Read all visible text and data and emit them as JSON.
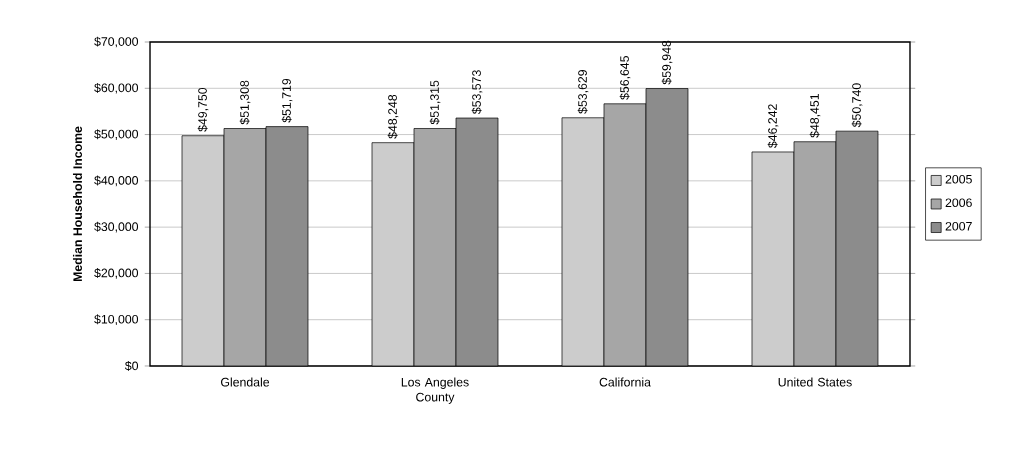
{
  "chart_data": {
    "type": "bar",
    "ylabel": "Median Household Income",
    "categories": [
      "Glendale",
      "Los Angeles County",
      "California",
      "United States"
    ],
    "series": [
      {
        "name": "2005",
        "color": "#cccccc",
        "values": [
          49750,
          48248,
          53629,
          46242
        ],
        "value_labels": [
          "$49,750",
          "$48,248",
          "$53,629",
          "$46,242"
        ]
      },
      {
        "name": "2006",
        "color": "#a6a6a6",
        "values": [
          51308,
          51315,
          56645,
          48451
        ],
        "value_labels": [
          "$51,308",
          "$51,315",
          "$56,645",
          "$48,451"
        ]
      },
      {
        "name": "2007",
        "color": "#8c8c8c",
        "values": [
          51719,
          53573,
          59948,
          50740
        ],
        "value_labels": [
          "$51,719",
          "$53,573",
          "$59,948",
          "$50,740"
        ]
      }
    ],
    "ylim": [
      0,
      70000
    ],
    "yticks": [
      {
        "value": 0,
        "label": "$0"
      },
      {
        "value": 10000,
        "label": "$10,000"
      },
      {
        "value": 20000,
        "label": "$20,000"
      },
      {
        "value": 30000,
        "label": "$30,000"
      },
      {
        "value": 40000,
        "label": "$40,000"
      },
      {
        "value": 50000,
        "label": "$50,000"
      },
      {
        "value": 60000,
        "label": "$60,000"
      },
      {
        "value": 70000,
        "label": "$70,000"
      }
    ],
    "grid": "y",
    "legend": "right"
  }
}
